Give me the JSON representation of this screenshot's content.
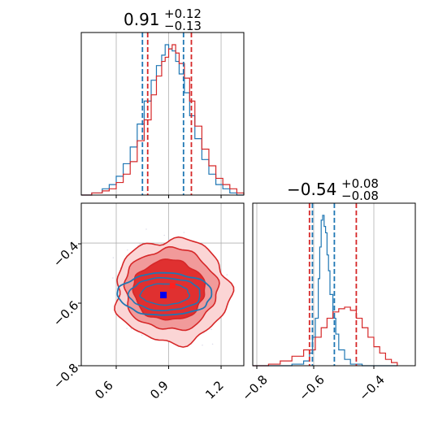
{
  "chart_data": {
    "type": "corner",
    "titles": [
      {
        "base": "0.91",
        "sup": "+0.12",
        "sub": "−0.13"
      },
      {
        "base": "−0.54",
        "sup": "+0.08",
        "sub": "−0.08"
      }
    ],
    "colors": {
      "series_a": "#d62728",
      "series_b": "#1f77b4",
      "grid": "#b0b0b0"
    },
    "param1": {
      "range": [
        0.4,
        1.33
      ],
      "ticks": [
        0.6,
        0.9,
        1.2
      ],
      "tick_labels": [
        "0.6",
        "0.9",
        "1.2"
      ],
      "quantiles_series_a": [
        0.78,
        1.03
      ],
      "quantiles_series_b": [
        0.75,
        0.985
      ]
    },
    "param2": {
      "range": [
        -0.8,
        -0.535
      ],
      "ticks": [
        -0.8,
        -0.6,
        -0.4
      ],
      "tick_labels": [
        "−0.8",
        "−0.6",
        "−0.4"
      ],
      "quantiles_series_a": [
        -0.62,
        -0.46
      ],
      "quantiles_series_b": [
        -0.61,
        -0.535
      ]
    },
    "panel2d": {
      "xrange": [
        0.4,
        1.33
      ],
      "yrange": [
        -0.8,
        -0.535
      ],
      "yticks": [
        -0.8,
        -0.6,
        -0.4
      ],
      "ytick_labels": [
        "−0.8",
        "−0.6",
        "−0.4"
      ],
      "series_a_center": [
        0.92,
        -0.54
      ],
      "series_b_center": [
        0.87,
        -0.56
      ]
    },
    "hist1_series_a": [
      [
        0.4,
        0
      ],
      [
        0.46,
        1
      ],
      [
        0.52,
        2
      ],
      [
        0.56,
        3
      ],
      [
        0.6,
        6
      ],
      [
        0.64,
        10
      ],
      [
        0.68,
        16
      ],
      [
        0.72,
        26
      ],
      [
        0.76,
        36
      ],
      [
        0.8,
        48
      ],
      [
        0.83,
        57
      ],
      [
        0.86,
        64
      ],
      [
        0.88,
        66
      ],
      [
        0.9,
        70
      ],
      [
        0.92,
        72
      ],
      [
        0.94,
        68
      ],
      [
        0.96,
        63
      ],
      [
        0.99,
        56
      ],
      [
        1.02,
        45
      ],
      [
        1.05,
        33
      ],
      [
        1.09,
        22
      ],
      [
        1.13,
        14
      ],
      [
        1.17,
        8
      ],
      [
        1.21,
        5
      ],
      [
        1.25,
        3
      ],
      [
        1.29,
        1
      ],
      [
        1.33,
        0
      ]
    ],
    "hist1_series_b": [
      [
        0.4,
        0
      ],
      [
        0.46,
        1
      ],
      [
        0.52,
        3
      ],
      [
        0.56,
        5
      ],
      [
        0.6,
        9
      ],
      [
        0.64,
        15
      ],
      [
        0.68,
        23
      ],
      [
        0.72,
        34
      ],
      [
        0.76,
        45
      ],
      [
        0.8,
        55
      ],
      [
        0.83,
        62
      ],
      [
        0.86,
        67
      ],
      [
        0.88,
        72
      ],
      [
        0.9,
        70
      ],
      [
        0.92,
        69
      ],
      [
        0.94,
        64
      ],
      [
        0.96,
        58
      ],
      [
        0.99,
        49
      ],
      [
        1.02,
        38
      ],
      [
        1.05,
        27
      ],
      [
        1.09,
        17
      ],
      [
        1.13,
        10
      ],
      [
        1.17,
        5
      ],
      [
        1.21,
        3
      ],
      [
        1.25,
        1
      ],
      [
        1.29,
        0
      ],
      [
        1.33,
        0
      ]
    ],
    "hist2_series_a": [
      [
        -0.8,
        0
      ],
      [
        -0.76,
        1
      ],
      [
        -0.72,
        3
      ],
      [
        -0.68,
        6
      ],
      [
        -0.64,
        10
      ],
      [
        -0.6,
        18
      ],
      [
        -0.58,
        24
      ],
      [
        -0.56,
        30
      ],
      [
        -0.54,
        34
      ],
      [
        -0.52,
        36
      ],
      [
        -0.5,
        37
      ],
      [
        -0.48,
        35
      ],
      [
        -0.46,
        30
      ],
      [
        -0.44,
        24
      ],
      [
        -0.42,
        18
      ],
      [
        -0.4,
        12
      ],
      [
        -0.38,
        8
      ],
      [
        -0.36,
        4
      ],
      [
        -0.34,
        2
      ],
      [
        -0.32,
        0
      ]
    ],
    "hist2_series_b": [
      [
        -0.8,
        0
      ],
      [
        -0.72,
        0
      ],
      [
        -0.68,
        1
      ],
      [
        -0.64,
        3
      ],
      [
        -0.62,
        8
      ],
      [
        -0.61,
        18
      ],
      [
        -0.6,
        30
      ],
      [
        -0.59,
        55
      ],
      [
        -0.585,
        75
      ],
      [
        -0.58,
        92
      ],
      [
        -0.575,
        95
      ],
      [
        -0.57,
        88
      ],
      [
        -0.565,
        84
      ],
      [
        -0.56,
        70
      ],
      [
        -0.555,
        60
      ],
      [
        -0.55,
        45
      ],
      [
        -0.54,
        30
      ],
      [
        -0.53,
        20
      ],
      [
        -0.52,
        10
      ],
      [
        -0.5,
        4
      ],
      [
        -0.48,
        1
      ],
      [
        -0.44,
        0
      ],
      [
        -0.32,
        0
      ]
    ]
  }
}
